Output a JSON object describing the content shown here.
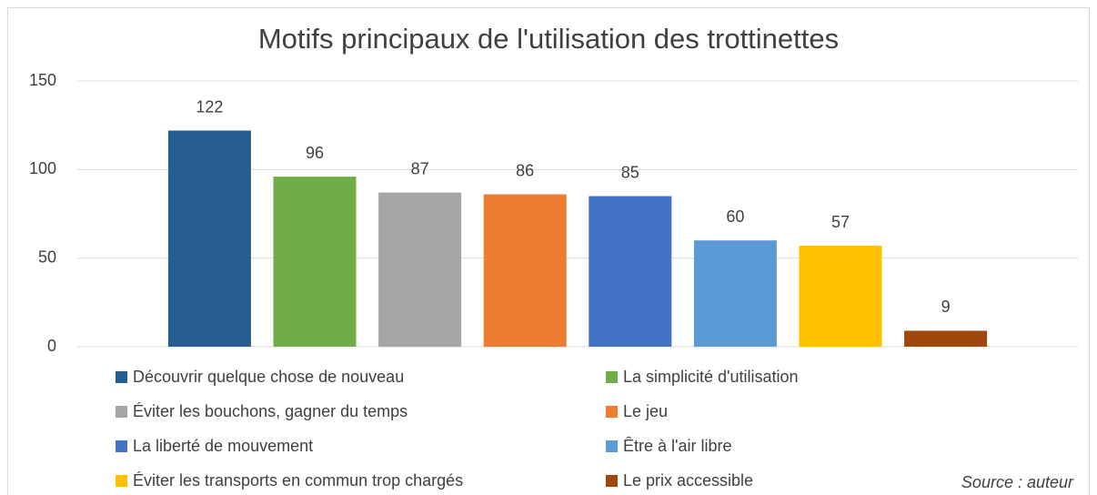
{
  "chart_data": {
    "type": "bar",
    "title": "Motifs principaux de l'utilisation des trottinettes",
    "series": [
      {
        "name": "Découvrir quelque chose de nouveau",
        "color": "#255e91",
        "values": [
          122
        ]
      },
      {
        "name": "La simplicité d'utilisation",
        "color": "#70ad47",
        "values": [
          96
        ]
      },
      {
        "name": "Éviter les bouchons, gagner du temps",
        "color": "#a5a5a5",
        "values": [
          87
        ]
      },
      {
        "name": "Le jeu",
        "color": "#ed7d31",
        "values": [
          86
        ]
      },
      {
        "name": "La liberté de mouvement",
        "color": "#4472c4",
        "values": [
          85
        ]
      },
      {
        "name": "Être à l'air libre",
        "color": "#5b9bd5",
        "values": [
          60
        ]
      },
      {
        "name": "Éviter les transports en commun trop chargés",
        "color": "#ffc000",
        "values": [
          57
        ]
      },
      {
        "name": "Le prix accessible",
        "color": "#9e480e",
        "values": [
          9
        ]
      }
    ],
    "ylim": [
      0,
      150
    ],
    "yticks": [
      0,
      50,
      100,
      150
    ],
    "grid": true,
    "legend": "bottom",
    "annotation": "Source : auteur"
  }
}
